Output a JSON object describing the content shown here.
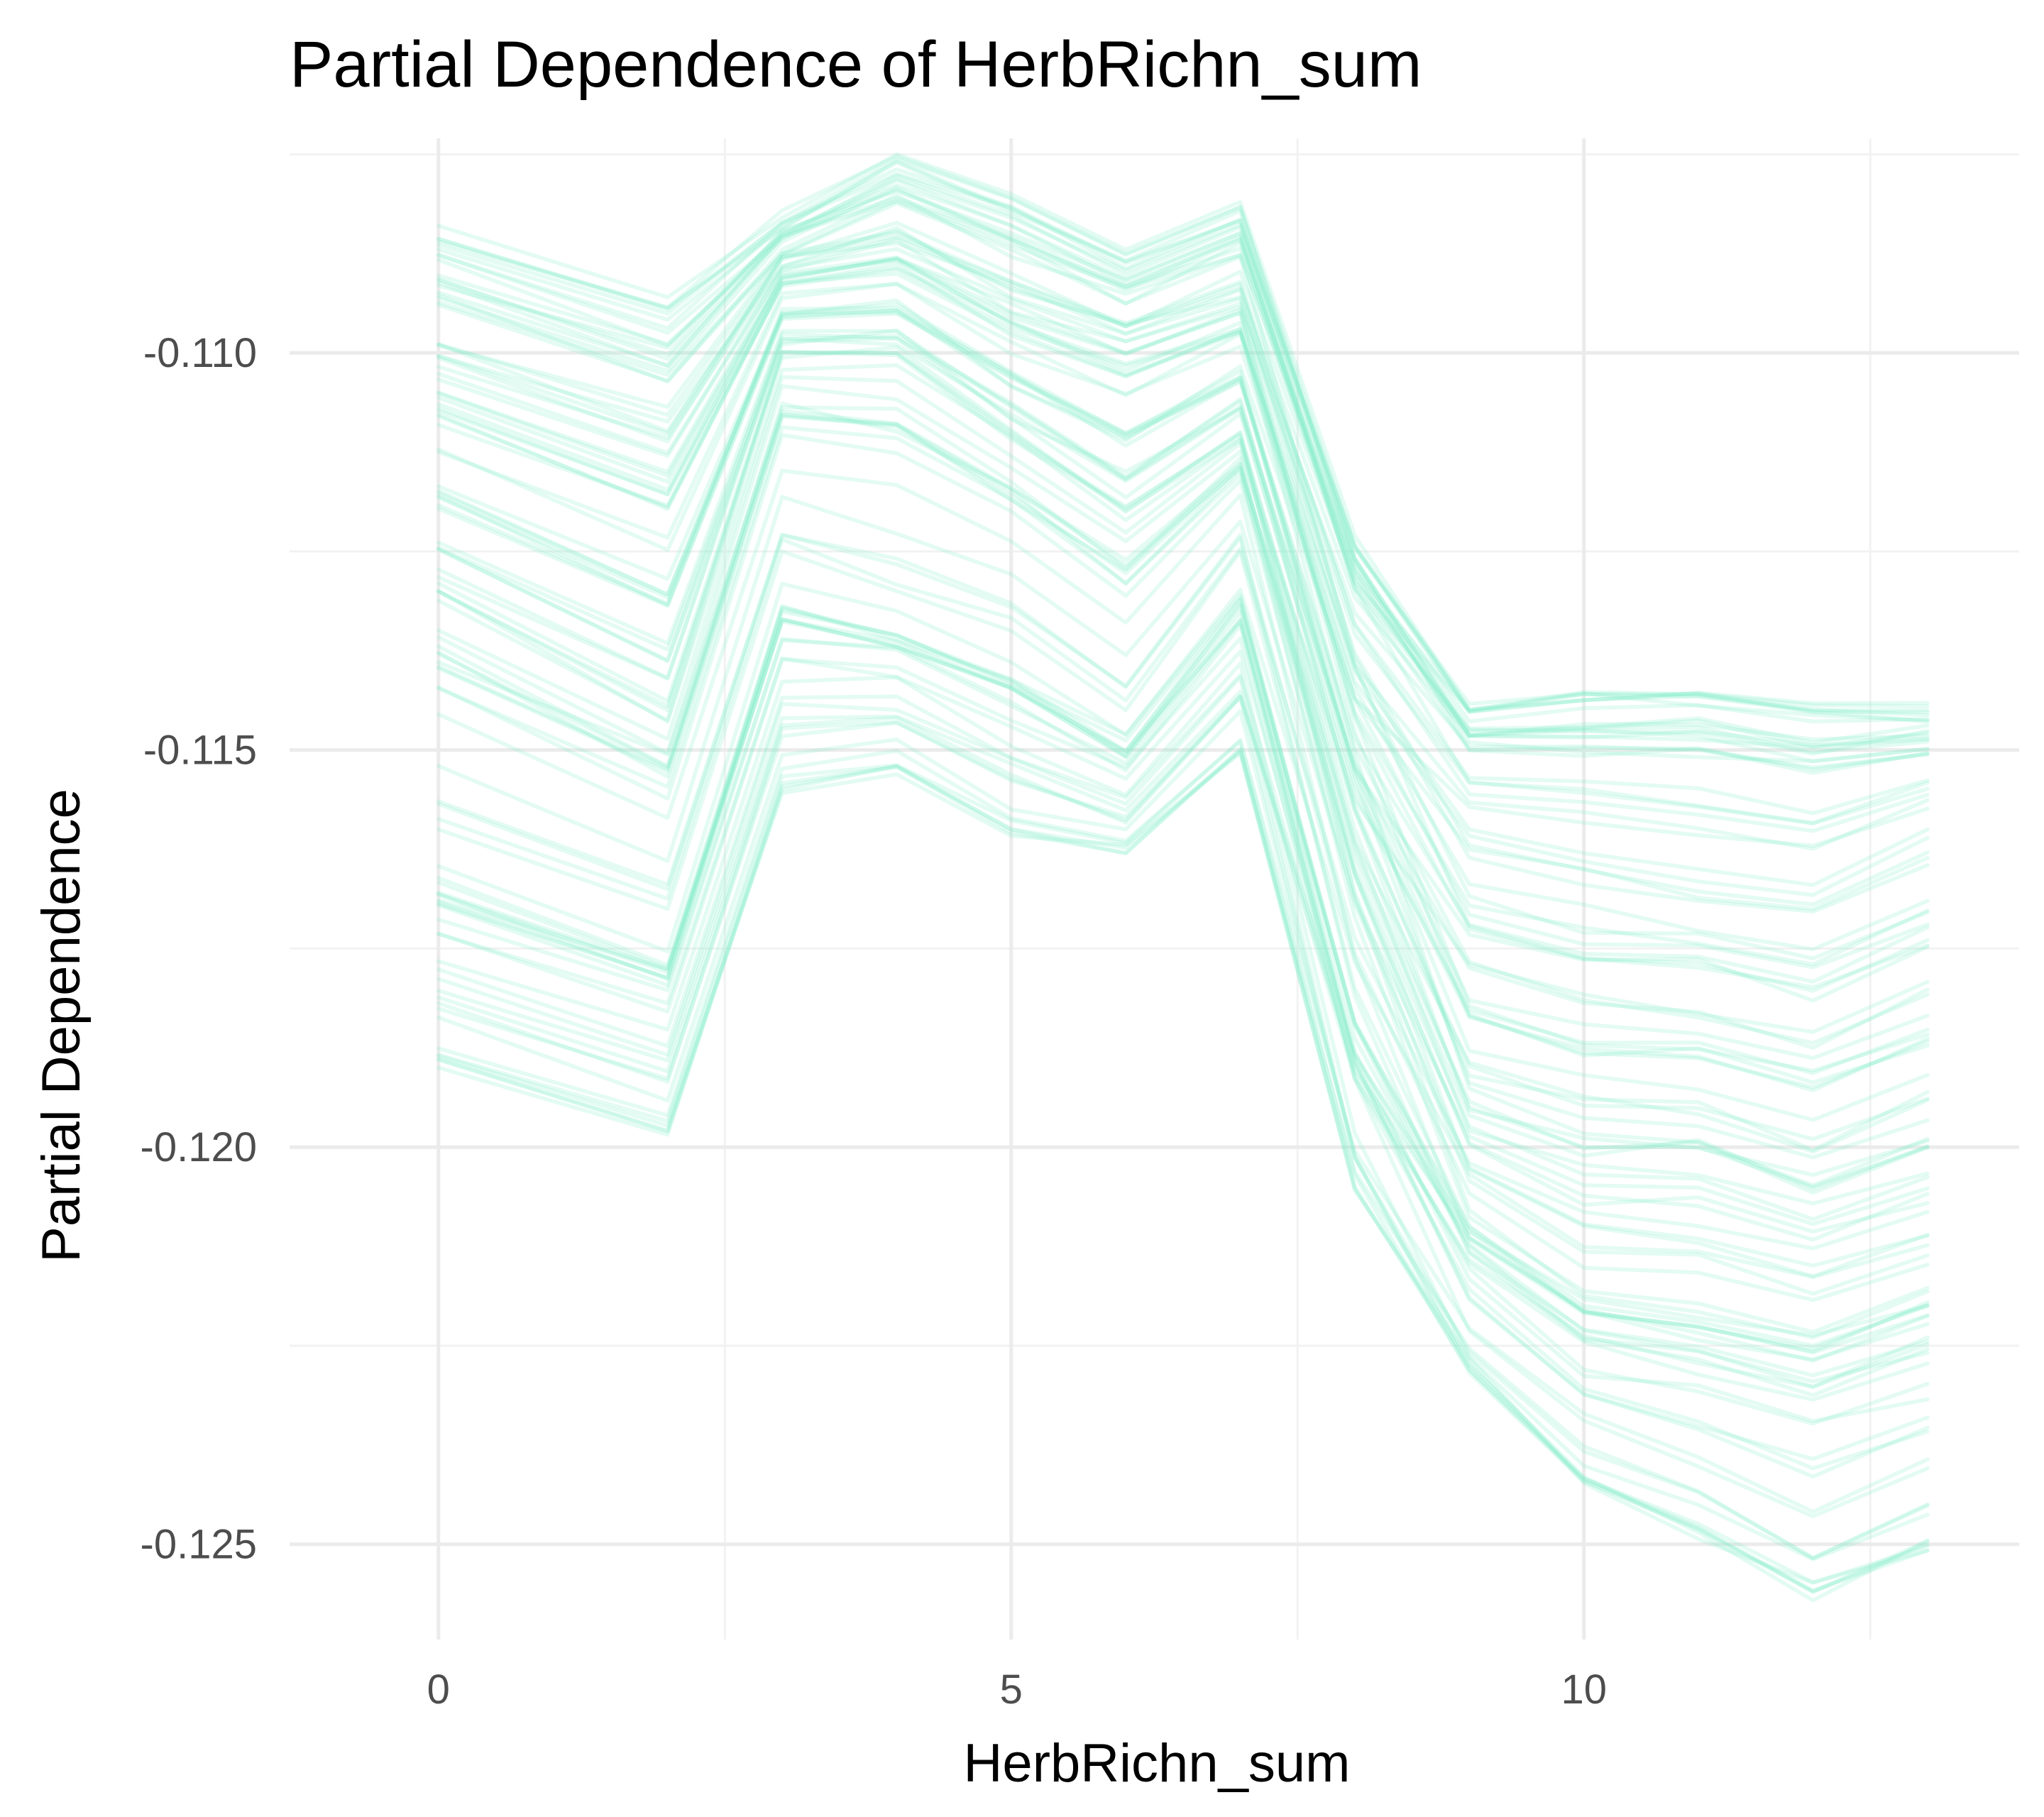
{
  "chart_data": {
    "type": "line",
    "title": "Partial Dependence of HerbRichn_sum",
    "xlabel": "HerbRichn_sum",
    "ylabel": "Partial Dependence",
    "x": [
      0,
      2,
      3,
      4,
      5,
      6,
      7,
      8,
      9,
      10,
      11,
      12,
      13
    ],
    "xlim": [
      -1.3,
      13.8
    ],
    "ylim": [
      -0.1262,
      -0.1073
    ],
    "x_ticks": [
      0,
      5,
      10
    ],
    "x_tick_labels": [
      "0",
      "5",
      "10"
    ],
    "x_minor_ticks": [
      2.5,
      7.5,
      12.5
    ],
    "y_ticks": [
      -0.125,
      -0.12,
      -0.115,
      -0.11
    ],
    "y_tick_labels": [
      "-0.125",
      "-0.120",
      "-0.115",
      "-0.110"
    ],
    "y_minor_ticks": [
      -0.1225,
      -0.1175,
      -0.1125,
      -0.1075
    ],
    "grid": true,
    "legend": "none",
    "line_color": "#7fefc8",
    "line_opacity": 0.22,
    "line_count": 100,
    "summary_series": [
      {
        "role": "highest",
        "values": [
          -0.1084,
          -0.1093,
          -0.1083,
          -0.1075,
          -0.108,
          -0.1087,
          -0.1081,
          -0.1123,
          -0.1145,
          -0.1143,
          -0.1143,
          -0.1145,
          -0.1145
        ]
      },
      {
        "role": "upper-typical",
        "values": [
          -0.1105,
          -0.1115,
          -0.109,
          -0.1088,
          -0.1095,
          -0.11,
          -0.1095,
          -0.114,
          -0.116,
          -0.1163,
          -0.1165,
          -0.1167,
          -0.116
        ]
      },
      {
        "role": "typical",
        "values": [
          -0.113,
          -0.1145,
          -0.11,
          -0.11,
          -0.111,
          -0.112,
          -0.111,
          -0.116,
          -0.1195,
          -0.12,
          -0.12,
          -0.1205,
          -0.12
        ]
      },
      {
        "role": "lower-typical",
        "values": [
          -0.116,
          -0.117,
          -0.1125,
          -0.113,
          -0.1135,
          -0.1145,
          -0.1125,
          -0.118,
          -0.121,
          -0.122,
          -0.1222,
          -0.1225,
          -0.122
        ]
      },
      {
        "role": "lowest",
        "values": [
          -0.1189,
          -0.1198,
          -0.1155,
          -0.1152,
          -0.116,
          -0.1163,
          -0.115,
          -0.1205,
          -0.1228,
          -0.1242,
          -0.1248,
          -0.1256,
          -0.125
        ]
      }
    ]
  }
}
